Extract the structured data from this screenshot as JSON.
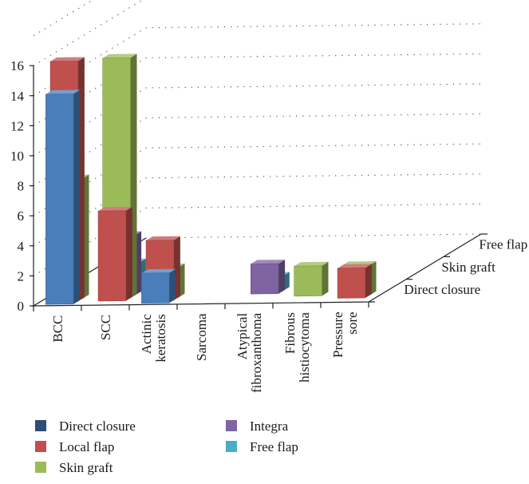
{
  "chart_data": {
    "type": "bar",
    "style": "3d-grouped-depth",
    "categories": [
      "BCC",
      "SCC",
      "Actinic keratosis",
      "Sarcoma",
      "Atypical fibroxanthoma",
      "Fibrous histiocytoma",
      "Pressure sore"
    ],
    "category_label_lines": [
      [
        "BCC"
      ],
      [
        "SCC"
      ],
      [
        "Actinic",
        "keratosis"
      ],
      [
        "Sarcoma"
      ],
      [
        "Atypical",
        "fibroxanthoma"
      ],
      [
        "Fibrous",
        "histiocytoma"
      ],
      [
        "Pressure",
        "sore"
      ]
    ],
    "depth_labels": [
      "Direct closure",
      "Skin graft",
      "Free flap"
    ],
    "ylim": [
      0,
      16
    ],
    "yticks": [
      "0",
      "2",
      "4",
      "6",
      "8",
      "10",
      "12",
      "14",
      "16"
    ],
    "grid": true,
    "legend_position": "bottom",
    "series": [
      {
        "name": "Direct closure",
        "color": "#4a7ebb",
        "values": [
          14,
          0,
          2,
          0,
          0,
          0,
          0
        ]
      },
      {
        "name": "Local flap",
        "color": "#c0504d",
        "values": [
          16,
          6,
          4,
          0,
          0,
          0,
          2
        ]
      },
      {
        "name": "Skin graft",
        "color": "#9bbb59",
        "values": [
          8,
          16,
          2,
          0,
          0,
          2,
          2
        ]
      },
      {
        "name": "Integra",
        "color": "#8064a2",
        "values": [
          0,
          4,
          0,
          0,
          2,
          0,
          0
        ]
      },
      {
        "name": "Free flap",
        "color": "#4bacc6",
        "values": [
          0,
          2,
          0,
          0,
          1,
          0,
          0
        ]
      }
    ]
  }
}
